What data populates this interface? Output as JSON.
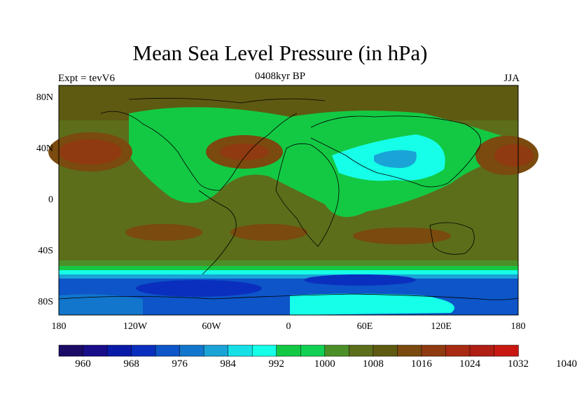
{
  "title": "Mean Sea Level Pressure (in hPa)",
  "left_label": "Expt = tevV6",
  "center_label": "0408kyr BP",
  "right_label": "JJA",
  "map": {
    "projection": "cylindrical-equidistant",
    "lon_range": [
      -180,
      180
    ],
    "lat_range": [
      -90,
      90
    ],
    "y_ticks": [
      {
        "lat": 80,
        "label": "80N"
      },
      {
        "lat": 40,
        "label": "40N"
      },
      {
        "lat": 0,
        "label": "0"
      },
      {
        "lat": -40,
        "label": "40S"
      },
      {
        "lat": -80,
        "label": "80S"
      }
    ],
    "x_ticks": [
      {
        "lon": -180,
        "label": "180"
      },
      {
        "lon": -120,
        "label": "120W"
      },
      {
        "lon": -60,
        "label": "60W"
      },
      {
        "lon": 0,
        "label": "0"
      },
      {
        "lon": 60,
        "label": "60E"
      },
      {
        "lon": 120,
        "label": "120E"
      },
      {
        "lon": 180,
        "label": "180"
      }
    ]
  },
  "colorbar": {
    "colors": [
      "#1b0a66",
      "#1a0d8a",
      "#0a1aa8",
      "#0a2fbe",
      "#0d55c8",
      "#1276cc",
      "#1aa3d6",
      "#16e0e6",
      "#16ffe8",
      "#13c944",
      "#12d053",
      "#4c8f28",
      "#5c6e1a",
      "#5e5a12",
      "#7a4a0e",
      "#8f3a10",
      "#a82a12",
      "#b01e14",
      "#c91812"
    ],
    "labels": [
      "960",
      "968",
      "976",
      "984",
      "992",
      "1000",
      "1008",
      "1016",
      "1024",
      "1032",
      "1040"
    ],
    "label_indices": [
      1,
      3,
      5,
      7,
      9,
      11,
      13,
      15,
      17,
      19,
      21
    ]
  },
  "palette": {
    "background": "#5c6e1a",
    "low_band": "#0d55c8",
    "deep_low": "#0a2fbe",
    "cyan": "#16ffe8",
    "light_cyan": "#1aa3d6",
    "green": "#13c944",
    "dark_green": "#4c8f28",
    "brown": "#7a4a0e",
    "red_brown": "#8f3a10",
    "red": "#a82a12"
  }
}
